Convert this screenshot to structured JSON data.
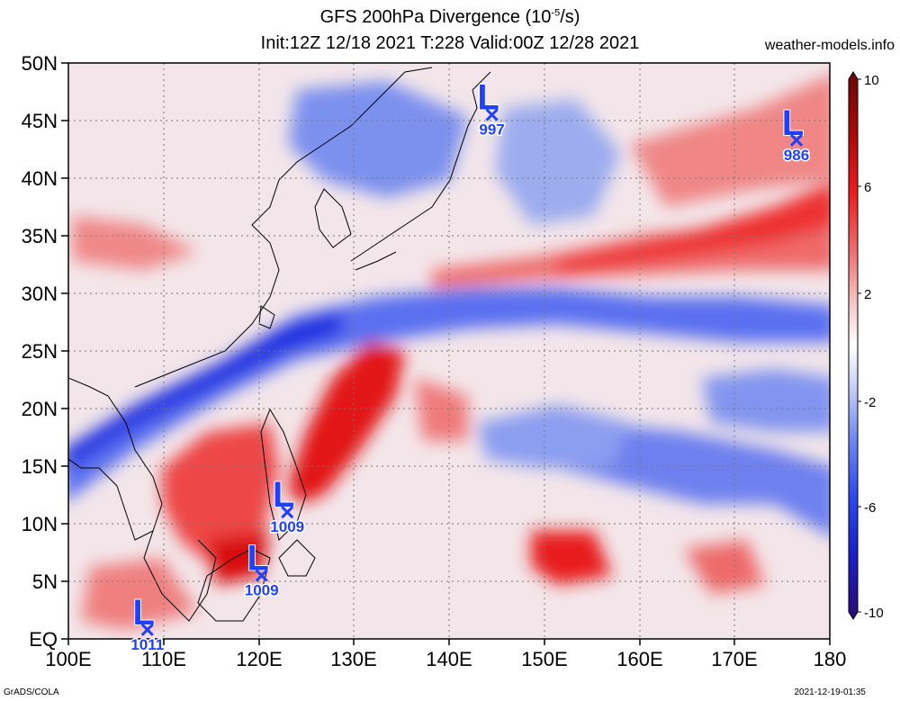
{
  "title": {
    "line1_prefix": "GFS 200hPa Divergence (10",
    "line1_sup": "-5",
    "line1_suffix": "/s)",
    "line2": "Init:12Z 12/18 2021 T:228 Valid:00Z 12/28 2021"
  },
  "site": "weather-models.info",
  "footer": {
    "left": "GrADS/COLA",
    "right": "2021-12-19-01:35"
  },
  "axes": {
    "lat_labels": [
      "50N",
      "45N",
      "40N",
      "35N",
      "30N",
      "25N",
      "20N",
      "15N",
      "10N",
      "5N",
      "EQ"
    ],
    "lon_labels": [
      "100E",
      "110E",
      "120E",
      "130E",
      "140E",
      "150E",
      "160E",
      "170E",
      "180"
    ],
    "lat_range": [
      0,
      50
    ],
    "lon_range": [
      100,
      180
    ]
  },
  "colorbar": {
    "labels": [
      "10",
      "6",
      "2",
      "-2",
      "-6",
      "-10"
    ],
    "colors": [
      "#1a0a6e",
      "#1b2ad6",
      "#3050f0",
      "#6a86f2",
      "#a9b9f4",
      "#dfe5f8",
      "#ffffff",
      "#f6d8d8",
      "#f4a6a6",
      "#f07070",
      "#ee3a3a",
      "#dd0c0c",
      "#a00a0a",
      "#6a0606"
    ]
  },
  "lows": [
    {
      "label": "L",
      "pressure": "997",
      "lon": 144.5,
      "lat": 45.5
    },
    {
      "label": "L",
      "pressure": "986",
      "lon": 176.5,
      "lat": 43.3
    },
    {
      "label": "L",
      "pressure": "1009",
      "lon": 123.0,
      "lat": 11.0
    },
    {
      "label": "L",
      "pressure": "1009",
      "lon": 120.3,
      "lat": 5.5
    },
    {
      "label": "L",
      "pressure": "1011",
      "lon": 108.3,
      "lat": 0.8
    }
  ],
  "colors": {
    "low_marker": "#2040ff"
  }
}
